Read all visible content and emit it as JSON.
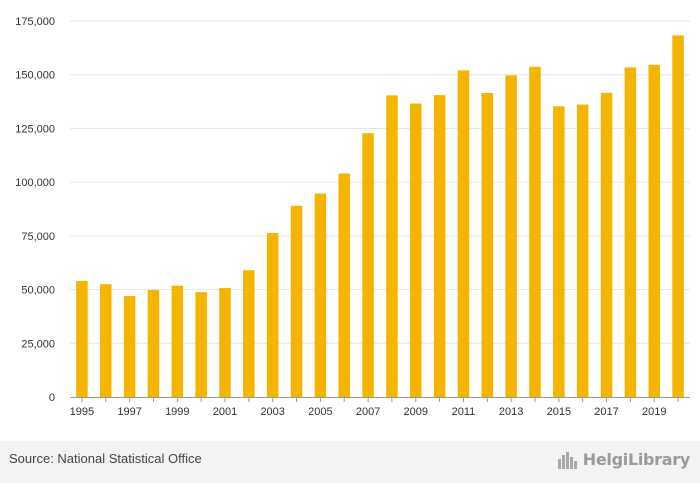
{
  "chart_data": {
    "type": "bar",
    "title": "",
    "xlabel": "",
    "ylabel": "",
    "ylim": [
      0,
      175000
    ],
    "y_ticks": [
      "0",
      "25,000",
      "50,000",
      "75,000",
      "100,000",
      "125,000",
      "150,000",
      "175,000"
    ],
    "categories": [
      "1995",
      "1996",
      "1997",
      "1998",
      "1999",
      "2000",
      "2001",
      "2002",
      "2003",
      "2004",
      "2005",
      "2006",
      "2007",
      "2008",
      "2009",
      "2010",
      "2011",
      "2012",
      "2013",
      "2014",
      "2015",
      "2016",
      "2017",
      "2018",
      "2019",
      "2020"
    ],
    "x_tick_labels": [
      "1995",
      "1997",
      "1999",
      "2001",
      "2003",
      "2005",
      "2007",
      "2009",
      "2011",
      "2013",
      "2015",
      "2017",
      "2019"
    ],
    "values": [
      54000,
      52500,
      47000,
      49800,
      51800,
      48800,
      50700,
      59000,
      76300,
      89000,
      94700,
      104000,
      122800,
      140400,
      136600,
      140500,
      152000,
      141500,
      149700,
      153700,
      135300,
      136100,
      141600,
      153400,
      154600,
      168300
    ],
    "bar_color": "#f5b400",
    "grid": true
  },
  "footer": {
    "source": "Source: National Statistical Office",
    "brand": "HelgiLibrary"
  },
  "colors": {
    "bar": "#f5b400",
    "grid": "#e6e6e6"
  }
}
